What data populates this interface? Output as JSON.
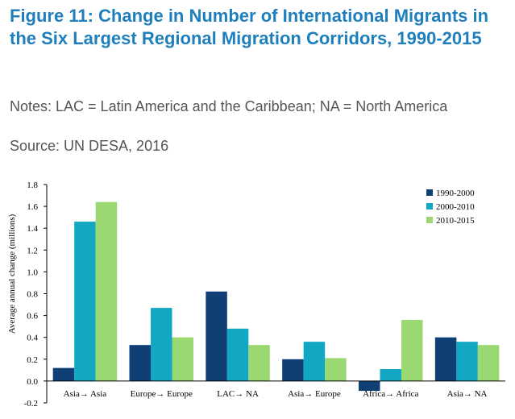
{
  "header": {
    "title": "Figure 11: Change in Number of International Migrants in the Six Largest Regional Migration Corridors, 1990-2015",
    "notes": "Notes: LAC = Latin America and the Caribbean; NA = North America",
    "source": "Source: UN DESA, 2016"
  },
  "chart_data": {
    "type": "bar",
    "title": "",
    "xlabel": "",
    "ylabel": "Average annual change (millions)",
    "ylim": [
      -0.2,
      1.8
    ],
    "yticks": [
      -0.2,
      0.0,
      0.2,
      0.4,
      0.6,
      0.8,
      1.0,
      1.2,
      1.4,
      1.6,
      1.8
    ],
    "ytick_labels": [
      "-0.2",
      "0.0",
      "0.2",
      "0.4",
      "0.6",
      "0.8",
      "1.0",
      "1.2",
      "1.4",
      "1.6",
      "1.8"
    ],
    "grid": false,
    "legend_position": "top-right",
    "categories": [
      "Asia→ Asia",
      "Europe→ Europe",
      "LAC→ NA",
      "Asia→ Europe",
      "Africa→ Africa",
      "Asia→ NA"
    ],
    "series": [
      {
        "name": "1990-2000",
        "color": "#0f3f75",
        "values": [
          0.12,
          0.33,
          0.82,
          0.2,
          -0.09,
          0.4
        ]
      },
      {
        "name": "2000-2010",
        "color": "#12a8c4",
        "values": [
          1.46,
          0.67,
          0.48,
          0.36,
          0.11,
          0.36
        ]
      },
      {
        "name": "2010-2015",
        "color": "#9ad872",
        "values": [
          1.64,
          0.4,
          0.33,
          0.21,
          0.56,
          0.33
        ]
      }
    ]
  }
}
